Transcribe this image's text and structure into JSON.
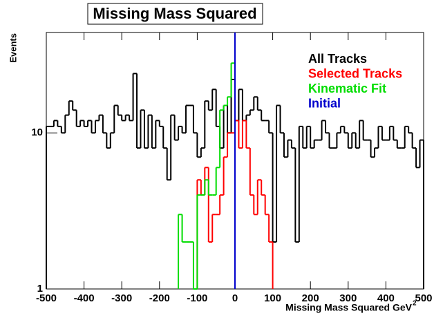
{
  "chart_data": {
    "type": "histogram",
    "title": "Missing Mass Squared",
    "xlabel": "Missing Mass Squared GeV",
    "xlabel_superscript": "2",
    "ylabel": "Events",
    "logy": true,
    "xlim": [
      -500,
      500
    ],
    "ylim": [
      1,
      44
    ],
    "xticks": [
      -500,
      -400,
      -300,
      -200,
      -100,
      0,
      100,
      200,
      300,
      400,
      500
    ],
    "yticks": [
      1,
      10
    ],
    "bins": [
      -500,
      -490,
      -480,
      -470,
      -460,
      -450,
      -440,
      -430,
      -420,
      -410,
      -400,
      -390,
      -380,
      -370,
      -360,
      -350,
      -340,
      -330,
      -320,
      -310,
      -300,
      -290,
      -280,
      -270,
      -260,
      -250,
      -240,
      -230,
      -220,
      -210,
      -200,
      -190,
      -180,
      -170,
      -160,
      -150,
      -140,
      -130,
      -120,
      -110,
      -100,
      -90,
      -80,
      -70,
      -60,
      -50,
      -40,
      -30,
      -20,
      -10,
      0,
      10,
      20,
      30,
      40,
      50,
      60,
      70,
      80,
      90,
      100,
      110,
      120,
      130,
      140,
      150,
      160,
      170,
      180,
      190,
      200,
      210,
      220,
      230,
      240,
      250,
      260,
      270,
      280,
      290,
      300,
      310,
      320,
      330,
      340,
      350,
      360,
      370,
      380,
      390,
      400,
      410,
      420,
      430,
      440,
      450,
      460,
      470,
      480,
      490,
      500
    ],
    "series": [
      {
        "name": "All Tracks",
        "color": "#000000",
        "values": [
          11,
          11,
          12,
          11,
          10,
          13,
          16,
          14,
          11,
          12,
          11,
          12,
          10,
          12,
          13,
          10,
          8,
          10,
          15,
          13,
          12,
          13,
          12,
          24,
          8,
          14,
          8,
          13,
          8,
          12,
          11,
          8,
          5,
          13,
          9,
          11,
          10,
          15,
          15,
          10,
          7,
          8,
          16,
          14,
          19,
          11,
          8,
          15,
          10,
          22,
          12,
          19,
          12,
          13,
          14,
          17,
          14,
          12,
          12,
          10,
          2,
          15,
          10,
          7,
          9,
          8,
          2,
          11,
          8,
          11,
          8,
          9,
          9,
          12,
          10,
          8,
          8,
          10,
          11,
          10,
          8,
          10,
          8,
          12,
          9,
          9,
          7,
          8,
          11,
          9,
          9,
          11,
          9,
          8,
          8,
          11,
          10,
          8,
          6,
          9
        ]
      },
      {
        "name": "Selected Tracks",
        "color": "#ff0000",
        "values": [
          null,
          null,
          null,
          null,
          null,
          null,
          null,
          null,
          null,
          null,
          null,
          null,
          null,
          null,
          null,
          null,
          null,
          null,
          null,
          null,
          null,
          null,
          null,
          null,
          null,
          null,
          null,
          null,
          null,
          null,
          null,
          null,
          null,
          null,
          null,
          null,
          null,
          null,
          null,
          null,
          5,
          4,
          6,
          2,
          3,
          3,
          4,
          7,
          10,
          10,
          12,
          8,
          12,
          8,
          4,
          3,
          5,
          4,
          3,
          2,
          null,
          null,
          null,
          null,
          null,
          null,
          null,
          null,
          null,
          null,
          null,
          null,
          null,
          null,
          null,
          null,
          null,
          null,
          null,
          null,
          null,
          null,
          null,
          null,
          null,
          null,
          null,
          null,
          null,
          null,
          null,
          null,
          null,
          null,
          null,
          null,
          null,
          null,
          null,
          null
        ]
      },
      {
        "name": "Kinematic Fit",
        "color": "#00dd00",
        "values": [
          null,
          null,
          null,
          null,
          null,
          null,
          null,
          null,
          null,
          null,
          null,
          null,
          null,
          null,
          null,
          null,
          null,
          null,
          null,
          null,
          null,
          null,
          null,
          null,
          null,
          null,
          null,
          null,
          null,
          null,
          null,
          null,
          null,
          null,
          null,
          3,
          2,
          2,
          2,
          1,
          4,
          4,
          5,
          4,
          4,
          6,
          14,
          15,
          17,
          28,
          null,
          null,
          null,
          null,
          null,
          null,
          null,
          null,
          null,
          null,
          null,
          null,
          null,
          null,
          null,
          null,
          null,
          null,
          null,
          null,
          null,
          null,
          null,
          null,
          null,
          null,
          null,
          null,
          null,
          null,
          null,
          null,
          null,
          null,
          null,
          null,
          null,
          null,
          null,
          null,
          null,
          null,
          null,
          null,
          null,
          null,
          null,
          null,
          null,
          null
        ]
      },
      {
        "name": "Initial",
        "color": "#0000cc",
        "x": 0
      }
    ]
  }
}
